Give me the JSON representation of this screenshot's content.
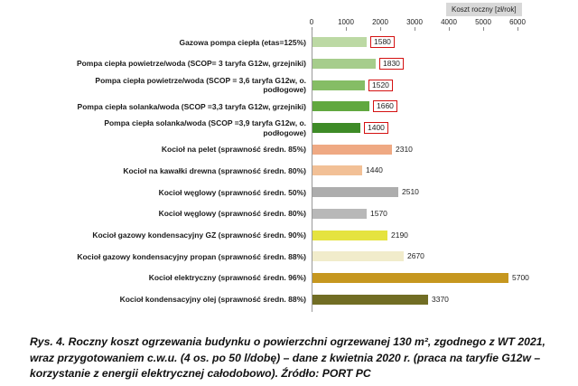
{
  "chart_data": {
    "type": "bar",
    "orientation": "horizontal",
    "axis_title": "Koszt roczny [zł/rok]",
    "xlim": [
      0,
      6000
    ],
    "x_ticks": [
      0,
      1000,
      2000,
      3000,
      4000,
      5000,
      6000
    ],
    "grid": false,
    "legend": false,
    "categories": [
      "Gazowa pompa ciepła (etas=125%)",
      "Pompa ciepła powietrze/woda (SCOP= 3 taryfa G12w, grzejniki)",
      "Pompa ciepła powietrze/woda (SCOP = 3,6 taryfa G12w, o.\npodłogowe)",
      "Pompa ciepła solanka/woda (SCOP =3,3 taryfa G12w, grzejniki)",
      "Pompa ciepła solanka/woda (SCOP =3,9 taryfa G12w, o.\npodłogowe)",
      "Kocioł na pelet (sprawność średn. 85%)",
      "Kocioł na kawałki drewna (sprawność średn. 80%)",
      "Kocioł węglowy (sprawność średn. 50%)",
      "Kocioł węglowy (sprawność średn. 80%)",
      "Kocioł gazowy kondensacyjny GZ (sprawność średn. 90%)",
      "Kocioł gazowy kondensacyjny propan (sprawność średn. 88%)",
      "Kocioł elektryczny (sprawność średn. 96%)",
      "Kocioł  kondensacyjny olej (sprawność średn. 88%)"
    ],
    "values": [
      1580,
      1830,
      1520,
      1660,
      1400,
      2310,
      1440,
      2510,
      1570,
      2190,
      2670,
      5700,
      3370
    ],
    "colors": [
      "#bcd9a4",
      "#a6cd8c",
      "#85bd65",
      "#61a83f",
      "#3e8b27",
      "#efa983",
      "#f2c096",
      "#adadad",
      "#b8b8b8",
      "#e5e33f",
      "#f1eccb",
      "#c6971f",
      "#716d24"
    ],
    "value_boxed": [
      true,
      true,
      true,
      true,
      true,
      false,
      false,
      false,
      false,
      false,
      false,
      false,
      false
    ],
    "value_box_color": "#d41111"
  },
  "caption": {
    "text": "Rys. 4. Roczny koszt ogrzewania budynku o powierzchni ogrzewanej 130 m², zgodnego z WT 2021, wraz przygotowaniem c.w.u. (4 os. po 50 l/dobę) – dane z kwietnia 2020 r. (praca na taryfie G12w – korzystanie z energii elektrycznej całodobowo). Źródło: PORT PC"
  }
}
